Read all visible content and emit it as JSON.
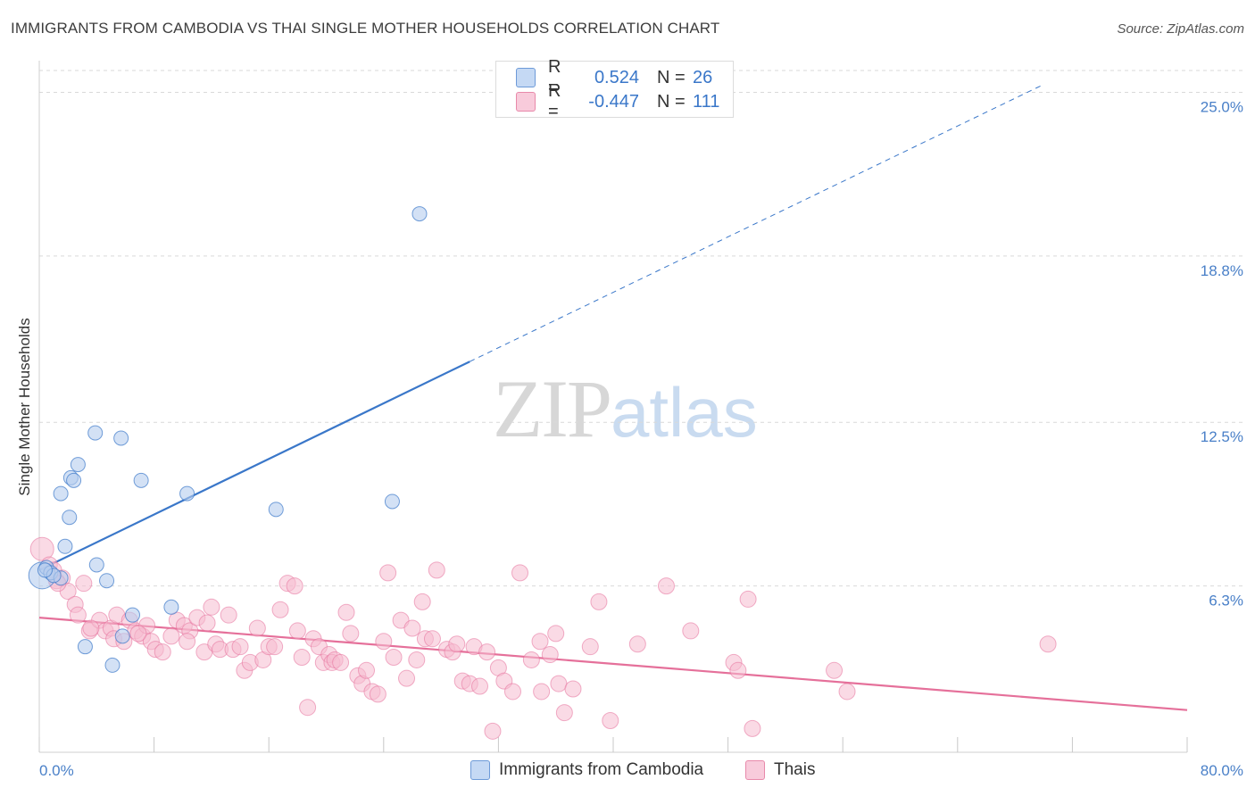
{
  "title": "IMMIGRANTS FROM CAMBODIA VS THAI SINGLE MOTHER HOUSEHOLDS CORRELATION CHART",
  "source": "Source: ZipAtlas.com",
  "watermark": {
    "zip": "ZIP",
    "atlas": "atlas"
  },
  "colors": {
    "blue": "#3a77c9",
    "blue_fill": "#b5cdef",
    "pink": "#e5709a",
    "pink_fill": "#f5bcd0",
    "tick_text": "#4a80c8",
    "grid": "#d9d9d9"
  },
  "legend": {
    "rows": [
      {
        "r_label": "R =",
        "r_value": "0.524",
        "n_label": "N =",
        "n_value": "26"
      },
      {
        "r_label": "R =",
        "r_value": "-0.447",
        "n_label": "N =",
        "n_value": "111"
      }
    ]
  },
  "chart_data": {
    "type": "scatter",
    "title": "IMMIGRANTS FROM CAMBODIA VS THAI SINGLE MOTHER HOUSEHOLDS CORRELATION CHART",
    "xlabel": "",
    "ylabel": "Single Mother Households",
    "xlim": [
      0,
      80
    ],
    "ylim": [
      0,
      26.2
    ],
    "x_tick_labels": [
      "0.0%",
      "80.0%"
    ],
    "y_ticks": [
      6.3,
      12.5,
      18.8,
      25.0
    ],
    "y_tick_labels": [
      "6.3%",
      "12.5%",
      "18.8%",
      "25.0%"
    ],
    "grid": true,
    "legend_position": "top-center",
    "series": [
      {
        "name": "Immigrants from Cambodia",
        "color": "#3a77c9",
        "r": 0.524,
        "n": 26,
        "trend": {
          "x0": 0,
          "y0": 6.9,
          "x1": 30.0,
          "y1": 14.8,
          "dashed_to_x": 70.0,
          "dashed_to_y": 25.3
        },
        "points": [
          [
            0.2,
            6.7,
            14
          ],
          [
            0.5,
            7.0,
            7
          ],
          [
            0.8,
            6.8,
            7
          ],
          [
            1.5,
            6.6,
            7
          ],
          [
            1.0,
            6.7,
            7
          ],
          [
            1.8,
            7.8,
            7
          ],
          [
            2.1,
            8.9,
            7
          ],
          [
            1.5,
            9.8,
            7
          ],
          [
            2.2,
            10.4,
            7
          ],
          [
            2.4,
            10.3,
            7
          ],
          [
            2.7,
            10.9,
            7
          ],
          [
            3.9,
            12.1,
            7
          ],
          [
            5.7,
            11.9,
            7
          ],
          [
            7.1,
            10.3,
            7
          ],
          [
            4.0,
            7.1,
            7
          ],
          [
            4.7,
            6.5,
            7
          ],
          [
            6.5,
            5.2,
            7
          ],
          [
            5.8,
            4.4,
            7
          ],
          [
            9.2,
            5.5,
            7
          ],
          [
            10.3,
            9.8,
            7
          ],
          [
            3.2,
            4.0,
            7
          ],
          [
            5.1,
            3.3,
            7
          ],
          [
            16.5,
            9.2,
            7
          ],
          [
            24.6,
            9.5,
            7
          ],
          [
            26.5,
            20.4,
            7
          ],
          [
            0.4,
            6.9,
            7
          ]
        ]
      },
      {
        "name": "Thais",
        "color": "#e5709a",
        "r": -0.447,
        "n": 111,
        "trend": {
          "x0": 0,
          "y0": 5.1,
          "x1": 80.0,
          "y1": 1.6
        },
        "points": [
          [
            0.2,
            7.7,
            13
          ],
          [
            0.7,
            7.1,
            9
          ],
          [
            1.2,
            6.5,
            9
          ],
          [
            1.6,
            6.6,
            9
          ],
          [
            2.0,
            6.1,
            9
          ],
          [
            2.5,
            5.6,
            9
          ],
          [
            3.1,
            6.4,
            9
          ],
          [
            2.7,
            5.2,
            9
          ],
          [
            3.5,
            4.6,
            9
          ],
          [
            4.2,
            5.0,
            9
          ],
          [
            4.6,
            4.6,
            9
          ],
          [
            5.0,
            4.7,
            9
          ],
          [
            5.4,
            5.2,
            9
          ],
          [
            5.2,
            4.3,
            9
          ],
          [
            5.9,
            4.2,
            9
          ],
          [
            6.3,
            5.0,
            9
          ],
          [
            6.7,
            4.6,
            9
          ],
          [
            7.2,
            4.4,
            9
          ],
          [
            7.5,
            4.8,
            9
          ],
          [
            7.8,
            4.2,
            9
          ],
          [
            8.1,
            3.9,
            9
          ],
          [
            8.6,
            3.8,
            9
          ],
          [
            9.2,
            4.4,
            9
          ],
          [
            9.6,
            5.0,
            9
          ],
          [
            10.1,
            4.8,
            9
          ],
          [
            10.5,
            4.6,
            9
          ],
          [
            10.3,
            4.2,
            9
          ],
          [
            11.0,
            5.1,
            9
          ],
          [
            11.5,
            3.8,
            9
          ],
          [
            12.0,
            5.5,
            9
          ],
          [
            12.3,
            4.1,
            9
          ],
          [
            12.6,
            3.9,
            9
          ],
          [
            13.2,
            5.2,
            9
          ],
          [
            13.5,
            3.9,
            9
          ],
          [
            14.0,
            4.0,
            9
          ],
          [
            14.3,
            3.1,
            9
          ],
          [
            14.7,
            3.4,
            9
          ],
          [
            15.2,
            4.7,
            9
          ],
          [
            15.6,
            3.5,
            9
          ],
          [
            16.0,
            4.0,
            9
          ],
          [
            16.4,
            4.0,
            9
          ],
          [
            16.8,
            5.4,
            9
          ],
          [
            17.3,
            6.4,
            9
          ],
          [
            17.8,
            6.3,
            9
          ],
          [
            18.0,
            4.6,
            9
          ],
          [
            18.3,
            3.6,
            9
          ],
          [
            18.7,
            1.7,
            9
          ],
          [
            19.1,
            4.3,
            9
          ],
          [
            19.5,
            4.0,
            9
          ],
          [
            19.8,
            3.4,
            9
          ],
          [
            20.2,
            3.7,
            9
          ],
          [
            20.4,
            3.4,
            9
          ],
          [
            20.6,
            3.5,
            9
          ],
          [
            21.0,
            3.4,
            9
          ],
          [
            21.4,
            5.3,
            9
          ],
          [
            21.7,
            4.5,
            9
          ],
          [
            22.2,
            2.9,
            9
          ],
          [
            22.5,
            2.6,
            9
          ],
          [
            22.8,
            3.1,
            9
          ],
          [
            23.2,
            2.3,
            9
          ],
          [
            23.6,
            2.2,
            9
          ],
          [
            24.0,
            4.2,
            9
          ],
          [
            24.3,
            6.8,
            9
          ],
          [
            24.7,
            3.6,
            9
          ],
          [
            25.2,
            5.0,
            9
          ],
          [
            25.6,
            2.8,
            9
          ],
          [
            26.0,
            4.7,
            9
          ],
          [
            26.7,
            5.7,
            9
          ],
          [
            26.9,
            4.3,
            9
          ],
          [
            27.4,
            4.3,
            9
          ],
          [
            27.7,
            6.9,
            9
          ],
          [
            28.4,
            3.9,
            9
          ],
          [
            28.8,
            3.8,
            9
          ],
          [
            29.1,
            4.1,
            9
          ],
          [
            29.5,
            2.7,
            9
          ],
          [
            30.0,
            2.6,
            9
          ],
          [
            30.3,
            4.0,
            9
          ],
          [
            30.7,
            2.5,
            9
          ],
          [
            31.2,
            3.8,
            9
          ],
          [
            31.6,
            0.8,
            9
          ],
          [
            32.0,
            3.2,
            9
          ],
          [
            32.4,
            2.7,
            9
          ],
          [
            33.0,
            2.3,
            9
          ],
          [
            33.5,
            6.8,
            9
          ],
          [
            34.3,
            3.5,
            9
          ],
          [
            35.0,
            2.3,
            9
          ],
          [
            35.6,
            3.7,
            9
          ],
          [
            36.0,
            4.5,
            9
          ],
          [
            36.2,
            2.6,
            9
          ],
          [
            36.6,
            1.5,
            9
          ],
          [
            37.2,
            2.4,
            9
          ],
          [
            38.4,
            4.0,
            9
          ],
          [
            39.0,
            5.7,
            9
          ],
          [
            39.8,
            1.2,
            9
          ],
          [
            41.7,
            4.1,
            9
          ],
          [
            43.7,
            6.3,
            9
          ],
          [
            45.4,
            4.6,
            9
          ],
          [
            48.4,
            3.4,
            9
          ],
          [
            48.7,
            3.1,
            9
          ],
          [
            49.4,
            5.8,
            9
          ],
          [
            49.7,
            0.9,
            9
          ],
          [
            55.4,
            3.1,
            9
          ],
          [
            56.3,
            2.3,
            9
          ],
          [
            70.3,
            4.1,
            9
          ],
          [
            1.0,
            6.9,
            9
          ],
          [
            1.3,
            6.4,
            9
          ],
          [
            3.6,
            4.7,
            9
          ],
          [
            6.9,
            4.5,
            9
          ],
          [
            11.7,
            4.9,
            9
          ],
          [
            26.3,
            3.5,
            9
          ],
          [
            34.9,
            4.2,
            9
          ]
        ]
      }
    ]
  },
  "bottom_legend": [
    {
      "label": "Immigrants from Cambodia"
    },
    {
      "label": "Thais"
    }
  ]
}
